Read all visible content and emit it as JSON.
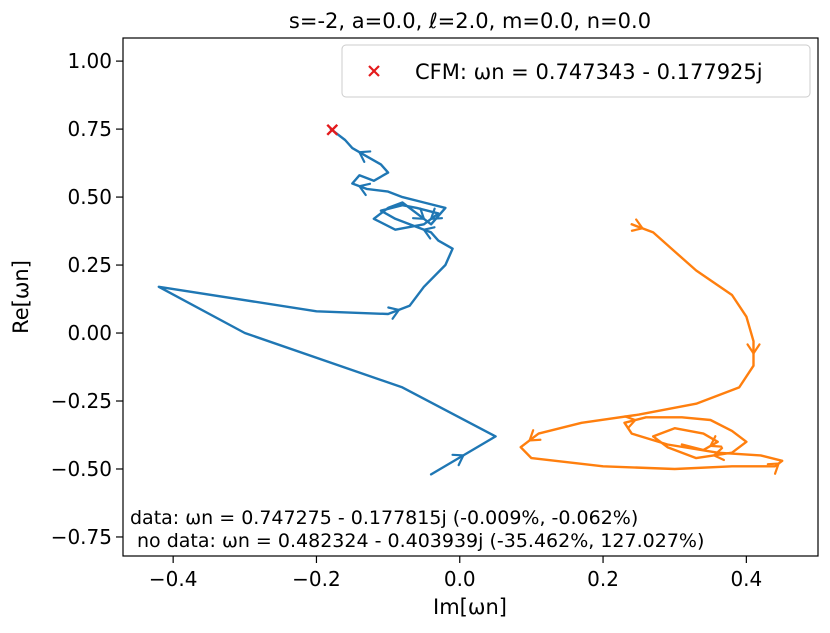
{
  "chart_data": {
    "type": "line",
    "title": "s=-2, a=0.0, ℓ=2.0, m=0.0, n=0.0",
    "xlabel": "Im[ωn]",
    "ylabel": "Re[ωn]",
    "xlim": [
      -0.47,
      0.5
    ],
    "ylim": [
      -0.82,
      1.085
    ],
    "xticks": [
      -0.4,
      -0.2,
      0.0,
      0.2,
      0.4
    ],
    "xtick_labels": [
      "−0.4",
      "−0.2",
      "0.0",
      "0.2",
      "0.4"
    ],
    "yticks": [
      1.0,
      0.75,
      0.5,
      0.25,
      0.0,
      -0.25,
      -0.5,
      -0.75
    ],
    "ytick_labels": [
      "1.00",
      "0.75",
      "0.50",
      "0.25",
      "0.00",
      "−0.25",
      "−0.50",
      "−0.75"
    ],
    "grid": false,
    "legend": {
      "position": "top-right",
      "entries": [
        {
          "label": "CFM: ωn = 0.747343 - 0.177925j",
          "marker": "x",
          "color": "#e41a1c"
        }
      ]
    },
    "cfm_point": {
      "x": -0.177925,
      "y": 0.747343
    },
    "series": [
      {
        "name": "data",
        "color": "#1f77b4",
        "x": [
          -0.04,
          0.05,
          -0.08,
          -0.3,
          -0.42,
          -0.2,
          -0.1,
          -0.07,
          -0.05,
          -0.02,
          -0.01,
          -0.03,
          -0.04,
          -0.06,
          -0.09,
          -0.11,
          -0.08,
          -0.06,
          -0.03,
          -0.05,
          -0.09,
          -0.12,
          -0.1,
          -0.08,
          -0.06,
          -0.04,
          -0.02,
          -0.05,
          -0.08,
          -0.1,
          -0.13,
          -0.15,
          -0.14,
          -0.12,
          -0.1,
          -0.11,
          -0.13,
          -0.15,
          -0.16,
          -0.18
        ],
        "y": [
          -0.52,
          -0.38,
          -0.2,
          0.0,
          0.17,
          0.08,
          0.07,
          0.1,
          0.17,
          0.25,
          0.31,
          0.34,
          0.37,
          0.39,
          0.42,
          0.45,
          0.47,
          0.46,
          0.44,
          0.4,
          0.38,
          0.42,
          0.46,
          0.48,
          0.44,
          0.4,
          0.46,
          0.48,
          0.5,
          0.52,
          0.53,
          0.55,
          0.58,
          0.56,
          0.59,
          0.62,
          0.65,
          0.68,
          0.71,
          0.75
        ]
      },
      {
        "name": "no data",
        "color": "#ff7f0e",
        "x": [
          0.24,
          0.27,
          0.3,
          0.33,
          0.38,
          0.4,
          0.41,
          0.41,
          0.39,
          0.33,
          0.25,
          0.17,
          0.11,
          0.085,
          0.1,
          0.2,
          0.3,
          0.38,
          0.44,
          0.45,
          0.42,
          0.36,
          0.29,
          0.24,
          0.23,
          0.26,
          0.31,
          0.35,
          0.38,
          0.4,
          0.38,
          0.33,
          0.29,
          0.27,
          0.3,
          0.34,
          0.36,
          0.34,
          0.31
        ],
        "y": [
          0.4,
          0.37,
          0.3,
          0.23,
          0.14,
          0.06,
          -0.03,
          -0.12,
          -0.2,
          -0.26,
          -0.3,
          -0.33,
          -0.37,
          -0.42,
          -0.46,
          -0.49,
          -0.5,
          -0.49,
          -0.49,
          -0.47,
          -0.45,
          -0.44,
          -0.41,
          -0.37,
          -0.33,
          -0.31,
          -0.31,
          -0.32,
          -0.36,
          -0.4,
          -0.44,
          -0.46,
          -0.42,
          -0.38,
          -0.35,
          -0.37,
          -0.4,
          -0.43,
          -0.41
        ]
      }
    ],
    "annotations": [
      "data: ωn = 0.747275 - 0.177815j (-0.009%, -0.062%)",
      "no data: ωn = 0.482324 - 0.403939j (-35.462%, 127.027%)"
    ]
  }
}
